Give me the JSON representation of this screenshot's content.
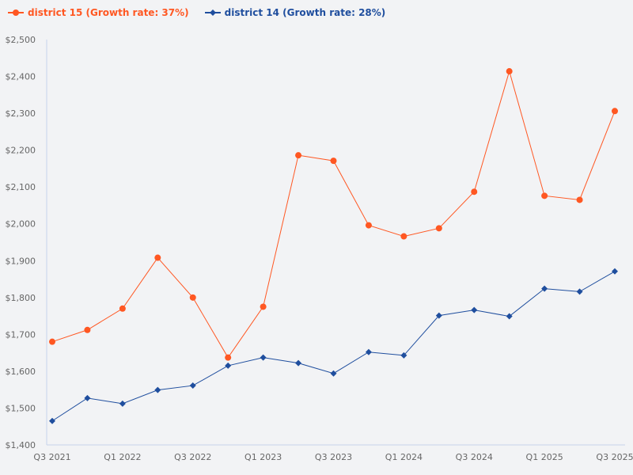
{
  "chart_data": {
    "type": "line",
    "title": "",
    "xlabel": "",
    "ylabel": "",
    "x": [
      "Q3 2021",
      "Q4 2021",
      "Q1 2022",
      "Q2 2022",
      "Q3 2022",
      "Q4 2022",
      "Q1 2023",
      "Q2 2023",
      "Q3 2023",
      "Q4 2023",
      "Q1 2024",
      "Q2 2024",
      "Q3 2024",
      "Q4 2024",
      "Q1 2025",
      "Q2 2025",
      "Q3 2025"
    ],
    "x_tick_labels": [
      "Q3 2021",
      "Q1 2022",
      "Q3 2022",
      "Q1 2023",
      "Q3 2023",
      "Q1 2024",
      "Q3 2024",
      "Q1 2025",
      "Q3 2025"
    ],
    "ylim": [
      1400,
      2500
    ],
    "y_ticks": [
      "$1,400",
      "$1,500",
      "$1,600",
      "$1,700",
      "$1,800",
      "$1,900",
      "$2,000",
      "$2,100",
      "$2,200",
      "$2,300",
      "$2,400",
      "$2,500"
    ],
    "grid": false,
    "legend_position": "top-left",
    "series": [
      {
        "name": "district 15 (Growth rate: 37%)",
        "color": "#ff5722",
        "marker": "circle",
        "values": [
          1680,
          1712,
          1770,
          1908,
          1800,
          1637,
          1775,
          2186,
          2171,
          1996,
          1966,
          1988,
          2087,
          2414,
          2076,
          2065,
          2306
        ]
      },
      {
        "name": "district 14 (Growth rate: 28%)",
        "color": "#1f4e9e",
        "marker": "diamond",
        "values": [
          1465,
          1527,
          1512,
          1549,
          1561,
          1615,
          1637,
          1622,
          1594,
          1652,
          1643,
          1751,
          1766,
          1749,
          1824,
          1816,
          1871
        ]
      }
    ]
  }
}
